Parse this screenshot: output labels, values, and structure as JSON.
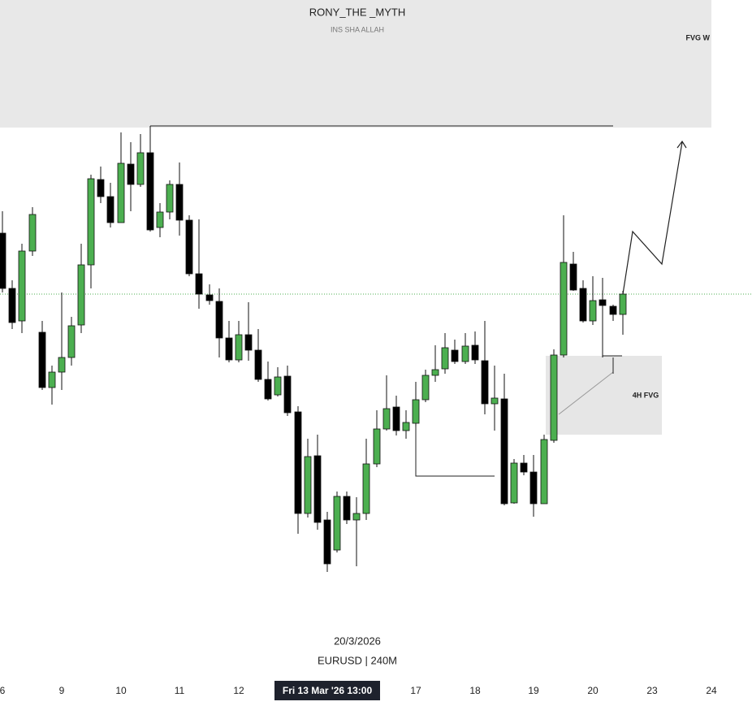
{
  "header": {
    "title": "RONY_THE _MYTH",
    "subtitle": "INS SHA ALLAH"
  },
  "annotations": {
    "top_zone": "FVG W",
    "box": "4H FVG"
  },
  "footer": {
    "date": "20/3/2026",
    "symbol": "EURUSD | 240M"
  },
  "time_axis": {
    "labels": [
      "6",
      "9",
      "10",
      "11",
      "12",
      "17",
      "18",
      "19",
      "20",
      "23",
      "24"
    ],
    "cursor": "Fri 13 Mar '26   13:00"
  }
}
